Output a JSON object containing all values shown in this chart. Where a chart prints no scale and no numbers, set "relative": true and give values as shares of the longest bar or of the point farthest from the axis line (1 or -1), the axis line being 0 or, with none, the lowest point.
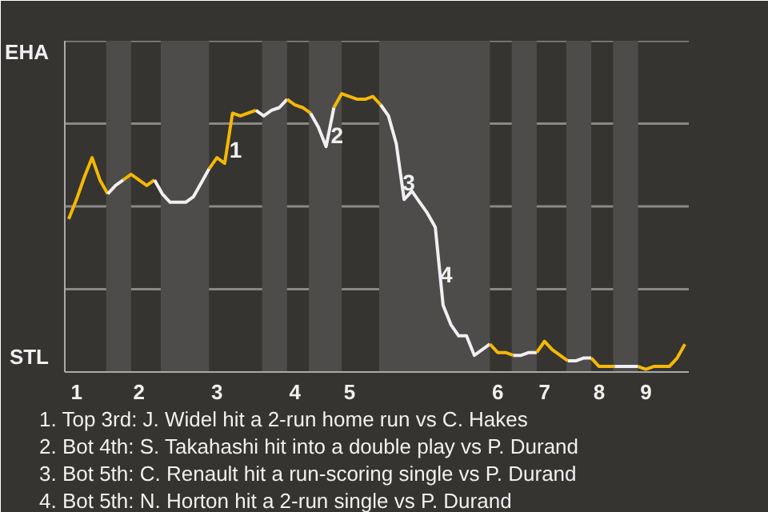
{
  "chart_data": {
    "type": "line",
    "relative": true,
    "categories": [
      null,
      "1",
      null,
      null,
      null,
      null,
      null,
      null,
      null,
      "2",
      null,
      null,
      null,
      null,
      null,
      null,
      null,
      null,
      null,
      "3",
      null,
      null,
      null,
      null,
      null,
      null,
      null,
      null,
      null,
      "4",
      null,
      null,
      null,
      null,
      null,
      null,
      "5",
      null,
      null,
      null,
      null,
      null,
      null,
      null,
      null,
      null,
      null,
      null,
      null,
      null,
      null,
      null,
      null,
      null,
      null,
      "6",
      null,
      null,
      null,
      null,
      null,
      "7",
      null,
      null,
      null,
      null,
      null,
      null,
      "8",
      null,
      null,
      null,
      null,
      null,
      "9",
      null,
      null,
      null,
      null,
      null
    ],
    "series": [
      {
        "color": "#f5b800",
        "values": [
          0.55,
          0.62,
          0.7,
          0.77,
          0.69,
          0.64,
          null,
          null,
          null,
          null,
          null,
          null,
          null,
          null,
          null,
          null,
          null,
          null,
          null,
          null,
          null,
          null,
          null,
          null,
          null,
          null,
          null,
          null,
          null,
          null,
          null,
          null,
          null,
          null,
          null,
          null,
          null,
          null,
          null,
          null,
          null,
          null,
          null,
          null,
          null,
          null,
          null,
          null,
          null,
          null,
          null,
          null,
          null,
          null,
          null,
          null,
          null,
          null,
          null,
          null,
          null,
          null,
          null,
          null,
          null,
          null,
          null,
          null,
          null,
          null,
          null,
          null,
          null,
          null,
          null,
          null,
          null,
          null,
          null,
          null
        ]
      },
      {
        "color": "#f0f0f0",
        "values": [
          null,
          null,
          null,
          null,
          null,
          0.64,
          0.67,
          0.69,
          null,
          null,
          null,
          null,
          null,
          null,
          null,
          null,
          null,
          null,
          null,
          null,
          null,
          null,
          null,
          null,
          null,
          null,
          null,
          null,
          null,
          null,
          null,
          null,
          null,
          null,
          null,
          null,
          null,
          null,
          null,
          null,
          null,
          null,
          null,
          null,
          null,
          null,
          null,
          null,
          null,
          null,
          null,
          null,
          null,
          null,
          null,
          null,
          null,
          null,
          null,
          null,
          null,
          null,
          null,
          null,
          null,
          null,
          null,
          null,
          null,
          null,
          null,
          null,
          null,
          null,
          null,
          null,
          null,
          null,
          null,
          null
        ]
      },
      {
        "color": "#f5b801",
        "values": [
          null,
          null,
          null,
          null,
          null,
          null,
          null,
          0.69,
          0.71,
          0.69,
          0.67,
          0.69,
          null,
          null,
          null,
          null,
          null,
          null,
          null,
          null,
          null,
          null,
          null,
          null,
          null,
          null,
          null,
          null,
          null,
          null,
          null,
          null,
          null,
          null,
          null,
          null,
          null,
          null,
          null,
          null,
          null,
          null,
          null,
          null,
          null,
          null,
          null,
          null,
          null,
          null,
          null,
          null,
          null,
          null,
          null,
          null,
          null,
          null,
          null,
          null,
          null,
          null,
          null,
          null,
          null,
          null,
          null,
          null,
          null,
          null,
          null,
          null,
          null,
          null,
          null,
          null,
          null,
          null,
          null,
          null
        ]
      },
      {
        "color": "#f0f0f1",
        "values": [
          null,
          null,
          null,
          null,
          null,
          null,
          null,
          null,
          null,
          null,
          null,
          0.69,
          0.64,
          0.61,
          0.61,
          0.61,
          0.63,
          0.68,
          0.73,
          null,
          null,
          null,
          null,
          null,
          null,
          null,
          null,
          null,
          null,
          null,
          null,
          null,
          null,
          null,
          null,
          null,
          null,
          null,
          null,
          null,
          null,
          null,
          null,
          null,
          null,
          null,
          null,
          null,
          null,
          null,
          null,
          null,
          null,
          null,
          null,
          null,
          null,
          null,
          null,
          null,
          null,
          null,
          null,
          null,
          null,
          null,
          null,
          null,
          null,
          null,
          null,
          null,
          null,
          null,
          null,
          null,
          null,
          null,
          null,
          null
        ]
      },
      {
        "color": "#f5b802",
        "values": [
          null,
          null,
          null,
          null,
          null,
          null,
          null,
          null,
          null,
          null,
          null,
          null,
          null,
          null,
          null,
          null,
          null,
          null,
          0.73,
          0.77,
          0.75,
          0.93,
          0.92,
          0.93,
          0.94,
          null,
          null,
          null,
          null,
          null,
          null,
          null,
          null,
          null,
          null,
          null,
          null,
          null,
          null,
          null,
          null,
          null,
          null,
          null,
          null,
          null,
          null,
          null,
          null,
          null,
          null,
          null,
          null,
          null,
          null,
          null,
          null,
          null,
          null,
          null,
          null,
          null,
          null,
          null,
          null,
          null,
          null,
          null,
          null,
          null,
          null,
          null,
          null,
          null,
          null,
          null,
          null,
          null,
          null,
          null
        ]
      },
      {
        "color": "#f0f0f2",
        "values": [
          null,
          null,
          null,
          null,
          null,
          null,
          null,
          null,
          null,
          null,
          null,
          null,
          null,
          null,
          null,
          null,
          null,
          null,
          null,
          null,
          null,
          null,
          null,
          null,
          0.94,
          0.92,
          0.94,
          0.95,
          0.98,
          null,
          null,
          null,
          null,
          null,
          null,
          null,
          null,
          null,
          null,
          null,
          null,
          null,
          null,
          null,
          null,
          null,
          null,
          null,
          null,
          null,
          null,
          null,
          null,
          null,
          null,
          null,
          null,
          null,
          null,
          null,
          null,
          null,
          null,
          null,
          null,
          null,
          null,
          null,
          null,
          null,
          null,
          null,
          null,
          null,
          null,
          null,
          null,
          null,
          null,
          null
        ]
      },
      {
        "color": "#f5b803",
        "values": [
          null,
          null,
          null,
          null,
          null,
          null,
          null,
          null,
          null,
          null,
          null,
          null,
          null,
          null,
          null,
          null,
          null,
          null,
          null,
          null,
          null,
          null,
          null,
          null,
          null,
          null,
          null,
          null,
          0.98,
          0.96,
          0.95,
          0.93,
          null,
          null,
          null,
          null,
          null,
          null,
          null,
          null,
          null,
          null,
          null,
          null,
          null,
          null,
          null,
          null,
          null,
          null,
          null,
          null,
          null,
          null,
          null,
          null,
          null,
          null,
          null,
          null,
          null,
          null,
          null,
          null,
          null,
          null,
          null,
          null,
          null,
          null,
          null,
          null,
          null,
          null,
          null,
          null,
          null,
          null,
          null,
          null
        ]
      },
      {
        "color": "#f0f0f3",
        "values": [
          null,
          null,
          null,
          null,
          null,
          null,
          null,
          null,
          null,
          null,
          null,
          null,
          null,
          null,
          null,
          null,
          null,
          null,
          null,
          null,
          null,
          null,
          null,
          null,
          null,
          null,
          null,
          null,
          null,
          null,
          null,
          0.93,
          0.88,
          0.81,
          0.95,
          null,
          null,
          null,
          null,
          null,
          null,
          null,
          null,
          null,
          null,
          null,
          null,
          null,
          null,
          null,
          null,
          null,
          null,
          null,
          null,
          null,
          null,
          null,
          null,
          null,
          null,
          null,
          null,
          null,
          null,
          null,
          null,
          null,
          null,
          null,
          null,
          null,
          null,
          null,
          null,
          null,
          null,
          null,
          null,
          null
        ]
      },
      {
        "color": "#f5b804",
        "values": [
          null,
          null,
          null,
          null,
          null,
          null,
          null,
          null,
          null,
          null,
          null,
          null,
          null,
          null,
          null,
          null,
          null,
          null,
          null,
          null,
          null,
          null,
          null,
          null,
          null,
          null,
          null,
          null,
          null,
          null,
          null,
          null,
          null,
          null,
          0.95,
          1,
          0.99,
          0.98,
          0.98,
          0.99,
          0.96,
          null,
          null,
          null,
          null,
          null,
          null,
          null,
          null,
          null,
          null,
          null,
          null,
          null,
          null,
          null,
          null,
          null,
          null,
          null,
          null,
          null,
          null,
          null,
          null,
          null,
          null,
          null,
          null,
          null,
          null,
          null,
          null,
          null,
          null,
          null,
          null,
          null,
          null,
          null
        ]
      },
      {
        "color": "#f0f0f4",
        "values": [
          null,
          null,
          null,
          null,
          null,
          null,
          null,
          null,
          null,
          null,
          null,
          null,
          null,
          null,
          null,
          null,
          null,
          null,
          null,
          null,
          null,
          null,
          null,
          null,
          null,
          null,
          null,
          null,
          null,
          null,
          null,
          null,
          null,
          null,
          null,
          null,
          null,
          null,
          null,
          null,
          0.96,
          0.92,
          0.82,
          0.62,
          0.65,
          0.61,
          0.57,
          0.52,
          0.24,
          0.17,
          0.13,
          0.13,
          0.06,
          0.08,
          0.1,
          null,
          null,
          null,
          null,
          null,
          null,
          null,
          null,
          null,
          null,
          null,
          null,
          null,
          null,
          null,
          null,
          null,
          null,
          null,
          null,
          null,
          null,
          null,
          null,
          null
        ]
      },
      {
        "color": "#f5b805",
        "values": [
          null,
          null,
          null,
          null,
          null,
          null,
          null,
          null,
          null,
          null,
          null,
          null,
          null,
          null,
          null,
          null,
          null,
          null,
          null,
          null,
          null,
          null,
          null,
          null,
          null,
          null,
          null,
          null,
          null,
          null,
          null,
          null,
          null,
          null,
          null,
          null,
          null,
          null,
          null,
          null,
          null,
          null,
          null,
          null,
          null,
          null,
          null,
          null,
          null,
          null,
          null,
          null,
          null,
          null,
          0.1,
          0.07,
          0.07,
          0.06,
          null,
          null,
          null,
          null,
          null,
          null,
          null,
          null,
          null,
          null,
          null,
          null,
          null,
          null,
          null,
          null,
          null,
          null,
          null,
          null,
          null,
          null
        ]
      },
      {
        "color": "#f0f0f5",
        "values": [
          null,
          null,
          null,
          null,
          null,
          null,
          null,
          null,
          null,
          null,
          null,
          null,
          null,
          null,
          null,
          null,
          null,
          null,
          null,
          null,
          null,
          null,
          null,
          null,
          null,
          null,
          null,
          null,
          null,
          null,
          null,
          null,
          null,
          null,
          null,
          null,
          null,
          null,
          null,
          null,
          null,
          null,
          null,
          null,
          null,
          null,
          null,
          null,
          null,
          null,
          null,
          null,
          null,
          null,
          null,
          null,
          null,
          0.06,
          0.06,
          0.07,
          0.07,
          null,
          null,
          null,
          null,
          null,
          null,
          null,
          null,
          null,
          null,
          null,
          null,
          null,
          null,
          null,
          null,
          null,
          null,
          null
        ]
      },
      {
        "color": "#f5b806",
        "values": [
          null,
          null,
          null,
          null,
          null,
          null,
          null,
          null,
          null,
          null,
          null,
          null,
          null,
          null,
          null,
          null,
          null,
          null,
          null,
          null,
          null,
          null,
          null,
          null,
          null,
          null,
          null,
          null,
          null,
          null,
          null,
          null,
          null,
          null,
          null,
          null,
          null,
          null,
          null,
          null,
          null,
          null,
          null,
          null,
          null,
          null,
          null,
          null,
          null,
          null,
          null,
          null,
          null,
          null,
          null,
          null,
          null,
          null,
          null,
          null,
          0.07,
          0.11,
          0.08,
          0.06,
          0.04,
          null,
          null,
          null,
          null,
          null,
          null,
          null,
          null,
          null,
          null,
          null,
          null,
          null,
          null,
          null
        ]
      },
      {
        "color": "#f0f0f6",
        "values": [
          null,
          null,
          null,
          null,
          null,
          null,
          null,
          null,
          null,
          null,
          null,
          null,
          null,
          null,
          null,
          null,
          null,
          null,
          null,
          null,
          null,
          null,
          null,
          null,
          null,
          null,
          null,
          null,
          null,
          null,
          null,
          null,
          null,
          null,
          null,
          null,
          null,
          null,
          null,
          null,
          null,
          null,
          null,
          null,
          null,
          null,
          null,
          null,
          null,
          null,
          null,
          null,
          null,
          null,
          null,
          null,
          null,
          null,
          null,
          null,
          null,
          null,
          null,
          null,
          0.04,
          0.04,
          0.05,
          0.05,
          null,
          null,
          null,
          null,
          null,
          null,
          null,
          null,
          null,
          null,
          null,
          null
        ]
      },
      {
        "color": "#f5b807",
        "values": [
          null,
          null,
          null,
          null,
          null,
          null,
          null,
          null,
          null,
          null,
          null,
          null,
          null,
          null,
          null,
          null,
          null,
          null,
          null,
          null,
          null,
          null,
          null,
          null,
          null,
          null,
          null,
          null,
          null,
          null,
          null,
          null,
          null,
          null,
          null,
          null,
          null,
          null,
          null,
          null,
          null,
          null,
          null,
          null,
          null,
          null,
          null,
          null,
          null,
          null,
          null,
          null,
          null,
          null,
          null,
          null,
          null,
          null,
          null,
          null,
          null,
          null,
          null,
          null,
          null,
          null,
          null,
          0.05,
          0.02,
          0.02,
          0.02,
          null,
          null,
          null,
          null,
          null,
          null,
          null,
          null,
          null
        ]
      },
      {
        "color": "#f0f0f7",
        "values": [
          null,
          null,
          null,
          null,
          null,
          null,
          null,
          null,
          null,
          null,
          null,
          null,
          null,
          null,
          null,
          null,
          null,
          null,
          null,
          null,
          null,
          null,
          null,
          null,
          null,
          null,
          null,
          null,
          null,
          null,
          null,
          null,
          null,
          null,
          null,
          null,
          null,
          null,
          null,
          null,
          null,
          null,
          null,
          null,
          null,
          null,
          null,
          null,
          null,
          null,
          null,
          null,
          null,
          null,
          null,
          null,
          null,
          null,
          null,
          null,
          null,
          null,
          null,
          null,
          null,
          null,
          null,
          null,
          null,
          null,
          0.02,
          0.02,
          0.02,
          0.02,
          null,
          null,
          null,
          null,
          null,
          null
        ]
      },
      {
        "color": "#f5b808",
        "values": [
          null,
          null,
          null,
          null,
          null,
          null,
          null,
          null,
          null,
          null,
          null,
          null,
          null,
          null,
          null,
          null,
          null,
          null,
          null,
          null,
          null,
          null,
          null,
          null,
          null,
          null,
          null,
          null,
          null,
          null,
          null,
          null,
          null,
          null,
          null,
          null,
          null,
          null,
          null,
          null,
          null,
          null,
          null,
          null,
          null,
          null,
          null,
          null,
          null,
          null,
          null,
          null,
          null,
          null,
          null,
          null,
          null,
          null,
          null,
          null,
          null,
          null,
          null,
          null,
          null,
          null,
          null,
          null,
          null,
          null,
          null,
          null,
          null,
          0.02,
          0.01,
          0.02,
          0.02,
          0.02,
          0.05,
          0.1
        ]
      }
    ],
    "grid": "y",
    "annotations": [
      "EHA",
      "STL",
      {
        "text": "1"
      },
      {
        "text": "2"
      },
      {
        "text": "3"
      },
      {
        "text": "4"
      },
      "1. Top 3rd: J. Widel hit a 2-run home run vs C. Hakes",
      "2. Bot 4th: S. Takahashi hit into a double play vs P. Durand",
      "3. Bot 5th: C. Renault hit a run-scoring single vs P. Durand",
      "4. Bot 5th: N. Horton hit a 2-run single vs P. Durand"
    ]
  }
}
